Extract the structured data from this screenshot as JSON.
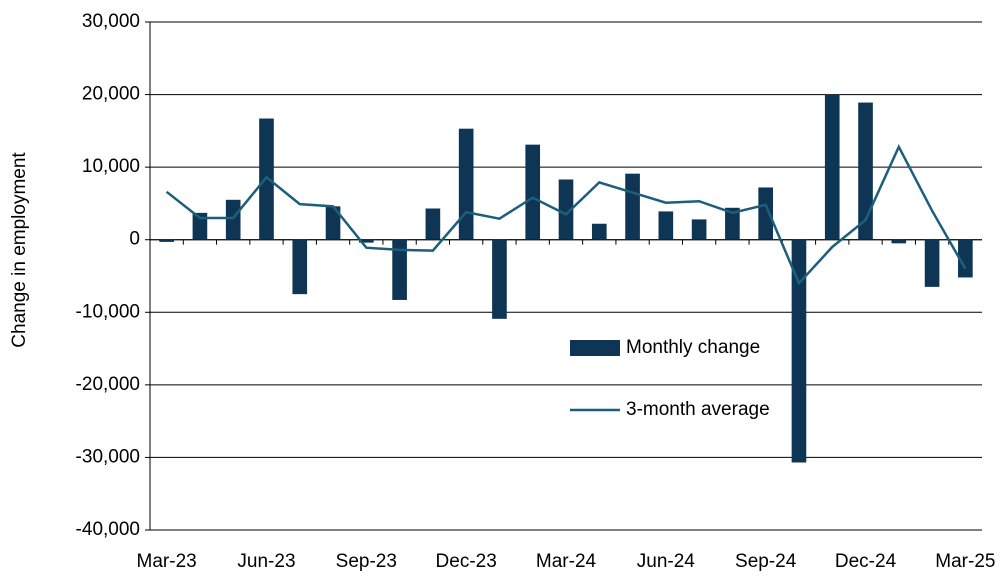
{
  "chart_data": {
    "type": "bar",
    "y_label": "Change in employment",
    "categories": [
      "Mar-23",
      null,
      null,
      "Jun-23",
      null,
      null,
      "Sep-23",
      null,
      null,
      "Dec-23",
      null,
      null,
      "Mar-24",
      null,
      null,
      "Jun-24",
      null,
      null,
      "Sep-24",
      null,
      null,
      "Dec-24",
      null,
      null,
      "Mar-25"
    ],
    "series": [
      {
        "name": "Monthly change",
        "type": "bar",
        "color": "#0f3555",
        "values": [
          -300,
          3700,
          5500,
          16700,
          -7500,
          4600,
          -400,
          -8300,
          4300,
          15300,
          -10900,
          13100,
          8300,
          2200,
          9100,
          3900,
          2800,
          4400,
          7200,
          -30700,
          20000,
          18900,
          -500,
          -6500,
          -5200
        ]
      },
      {
        "name": "3-month average",
        "type": "line",
        "color": "#1b5f7c",
        "values": [
          6600,
          3000,
          3000,
          8600,
          4900,
          4600,
          -1100,
          -1400,
          -1500,
          3800,
          2900,
          5800,
          3500,
          7900,
          6500,
          5100,
          5300,
          3700,
          4800,
          -6000,
          -1000,
          2700,
          12800,
          4000,
          -4000
        ]
      }
    ],
    "ylim": [
      -40000,
      30000
    ],
    "yticks": [
      {
        "value": -40000,
        "label": "-40,000"
      },
      {
        "value": -30000,
        "label": "-30,000"
      },
      {
        "value": -20000,
        "label": "-20,000"
      },
      {
        "value": -10000,
        "label": "-10,000"
      },
      0,
      {
        "value": 10000,
        "label": "10,000"
      },
      {
        "value": 20000,
        "label": "20,000"
      },
      {
        "value": 30000,
        "label": "30,000"
      }
    ],
    "grid": true,
    "legend": "center"
  }
}
